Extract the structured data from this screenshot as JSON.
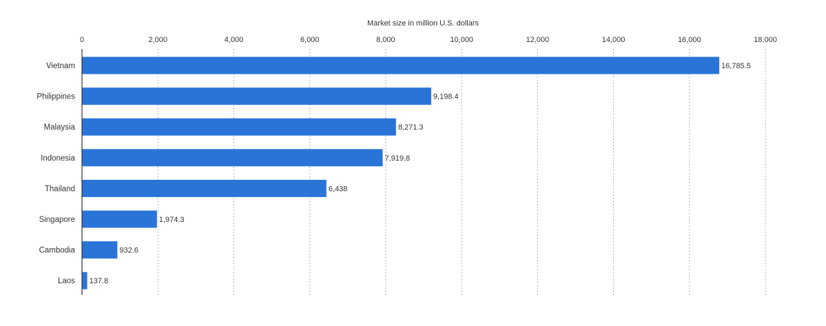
{
  "chart_data": {
    "type": "bar",
    "orientation": "horizontal",
    "title": "",
    "xlabel": "Market size in million U.S. dollars",
    "ylabel": "",
    "xlim": [
      0,
      18000
    ],
    "x_ticks": [
      0,
      2000,
      4000,
      6000,
      8000,
      10000,
      12000,
      14000,
      16000,
      18000
    ],
    "x_tick_labels": [
      "0",
      "2,000",
      "4,000",
      "6,000",
      "8,000",
      "10,000",
      "12,000",
      "14,000",
      "16,000",
      "18,000"
    ],
    "x_axis_position": "top",
    "grid": true,
    "legend": "none",
    "categories": [
      "Vietnam",
      "Philippines",
      "Malaysia",
      "Indonesia",
      "Thailand",
      "Singapore",
      "Cambodia",
      "Laos"
    ],
    "values": [
      16785.5,
      9198.4,
      8271.3,
      7919.8,
      6438,
      1974.3,
      932.6,
      137.8
    ],
    "value_labels": [
      "16,785.5",
      "9,198.4",
      "8,271.3",
      "7,919.8",
      "6,438",
      "1,974.3",
      "932.6",
      "137.8"
    ],
    "colors": {
      "bar": "#2a74d8",
      "text": "#333333",
      "grid": "#9a9a9a"
    }
  }
}
